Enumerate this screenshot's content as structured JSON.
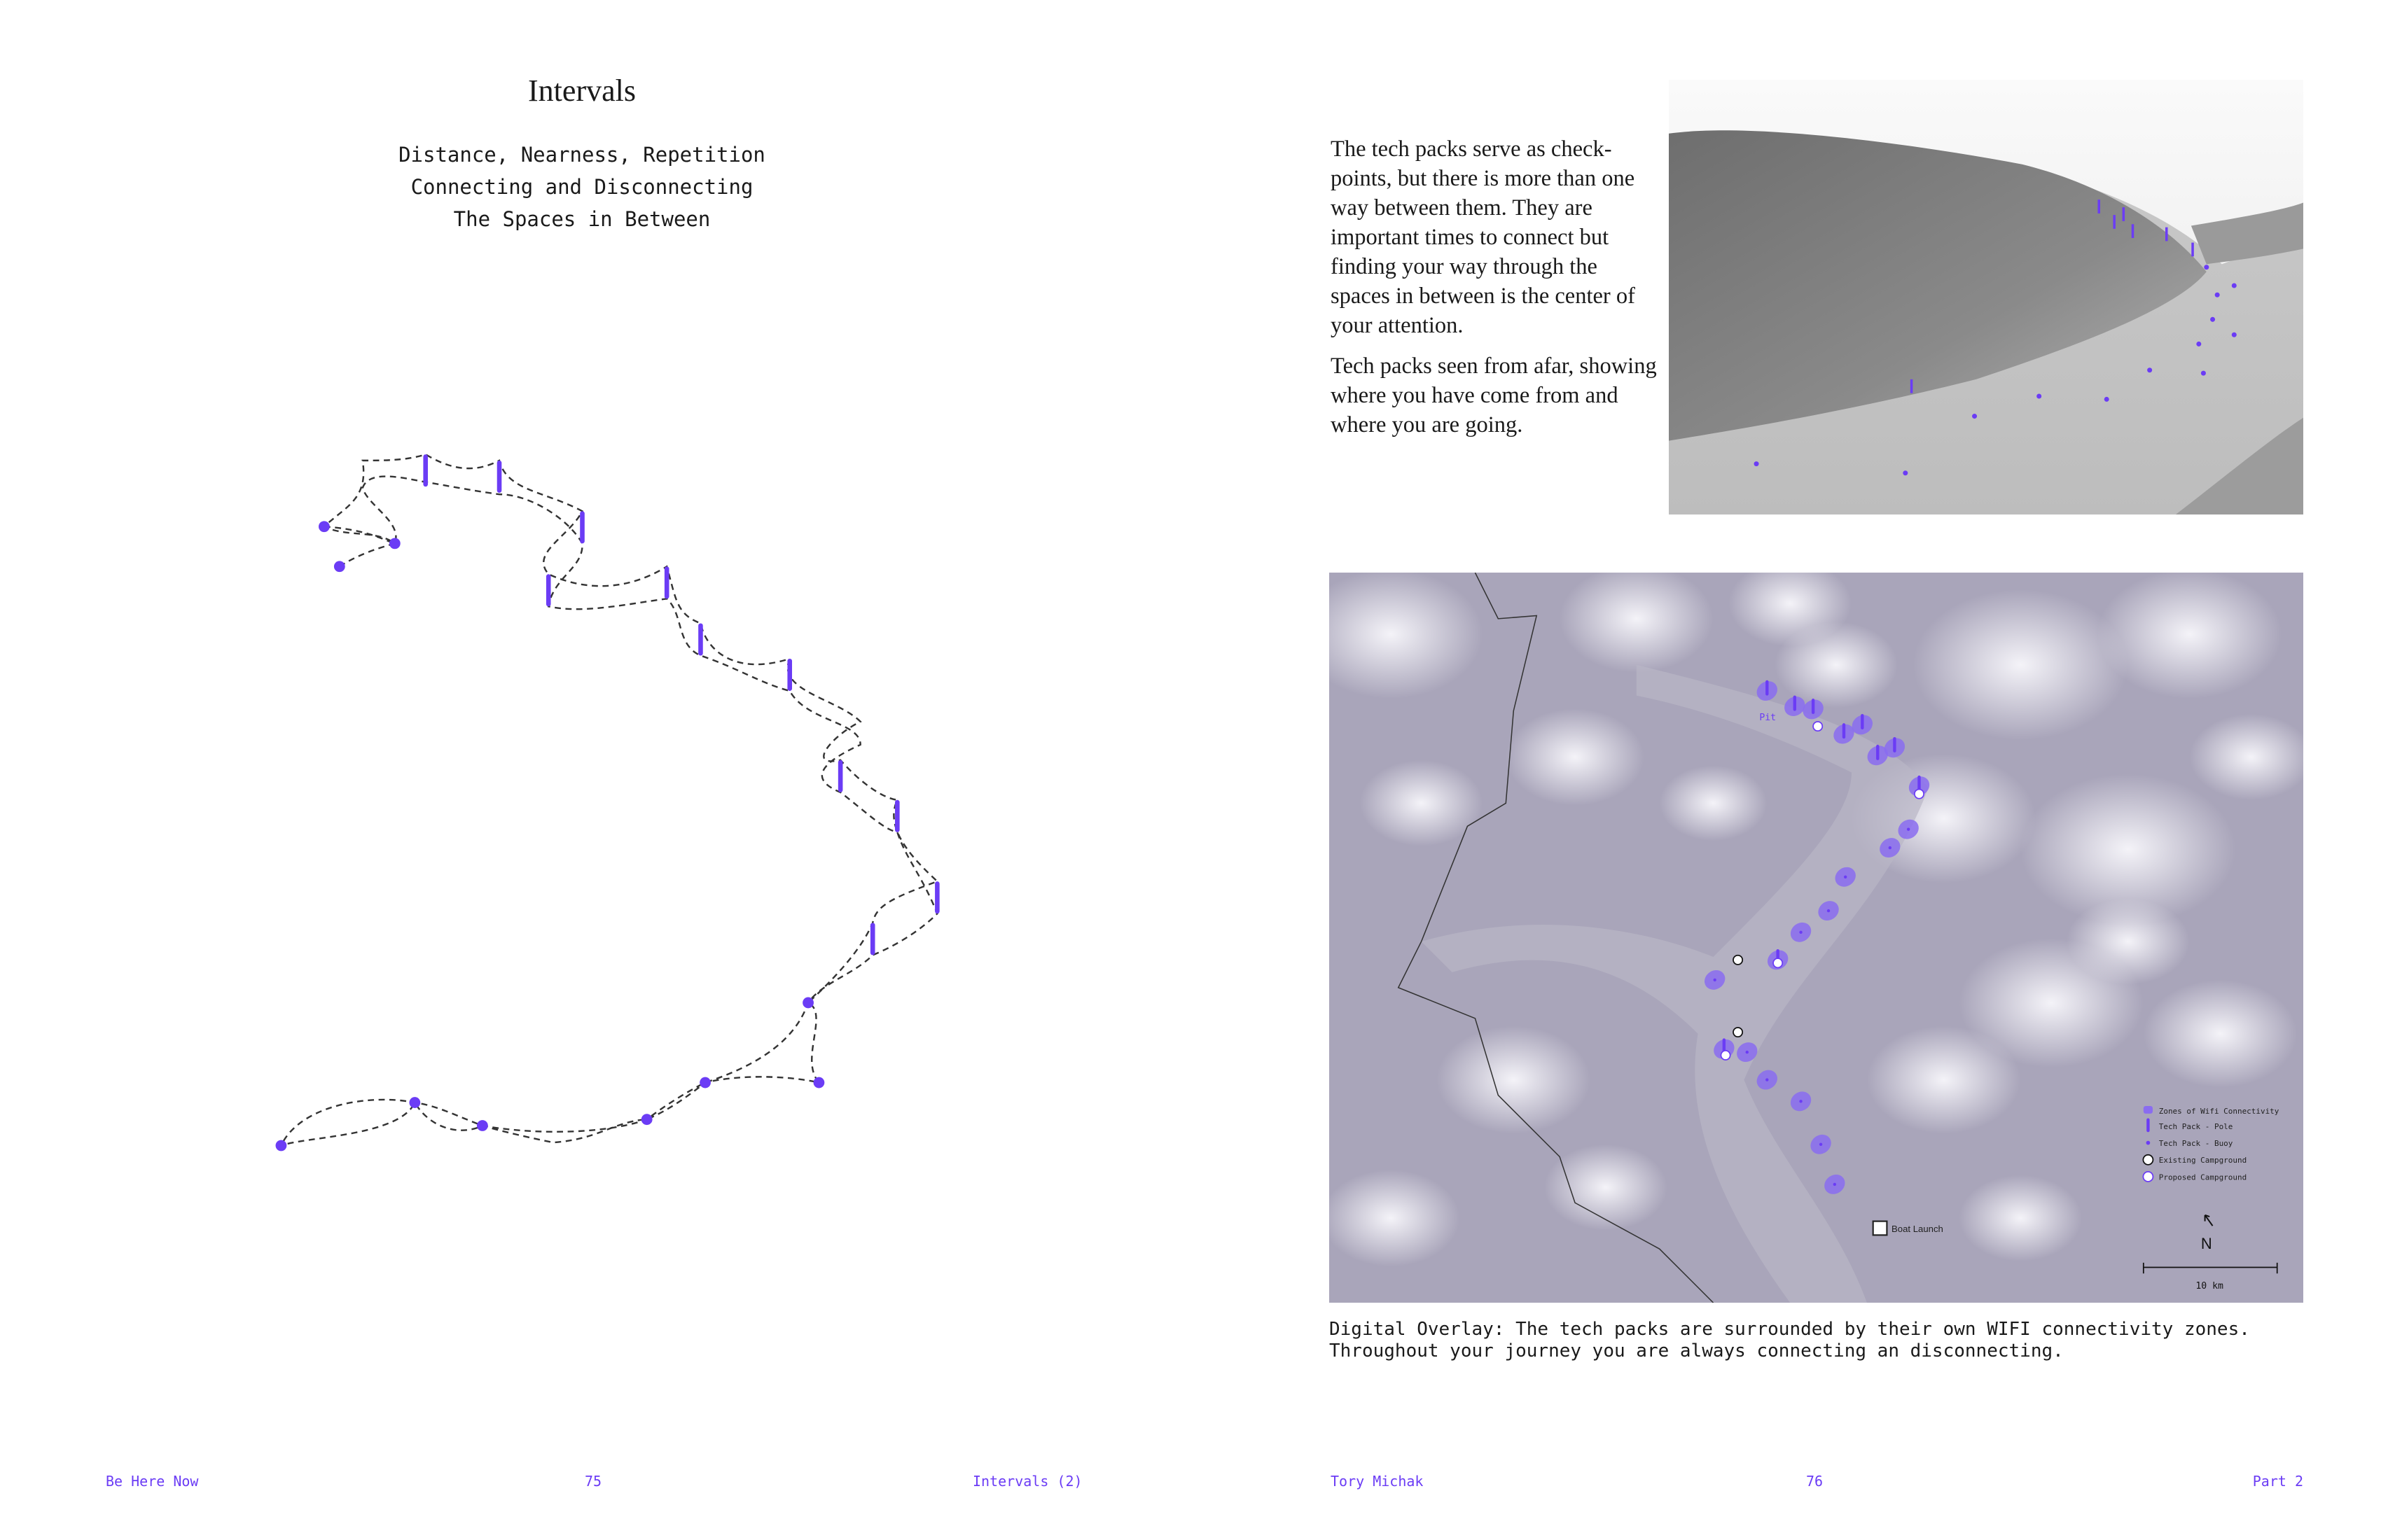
{
  "colors": {
    "accent": "#6b3cf5",
    "zone": "#8a6cf0",
    "text": "#1a1a1a",
    "map_base": "#a9a5ba"
  },
  "left_page": {
    "title": "Intervals",
    "subtitle_lines": [
      "Distance, Nearness, Repetition",
      "Connecting and Disconnecting",
      "The Spaces in Between"
    ],
    "footer": {
      "left": "Be Here Now",
      "center": "75",
      "right": "Intervals (2)"
    }
  },
  "right_page": {
    "paragraphs": [
      "The tech packs serve as check-points, but there is more than one way between them. They are important times to connect but finding your way through the spaces in between is the center of your attention.",
      "Tech packs seen from afar, showing where you have come from and where you are going."
    ],
    "map": {
      "pit_label": "Pit",
      "boat_launch_label": "Boat Launch",
      "legend": [
        {
          "icon": "zone-swatch-icon",
          "label": "Zones of Wifi Connectivity"
        },
        {
          "icon": "pole-icon",
          "label": "Tech Pack - Pole"
        },
        {
          "icon": "buoy-icon",
          "label": "Tech Pack - Buoy"
        },
        {
          "icon": "existing-campground-icon",
          "label": "Existing Campground"
        },
        {
          "icon": "proposed-campground-icon",
          "label": "Proposed Campground"
        }
      ],
      "north_label": "N",
      "scale_label": "10 km"
    },
    "caption": "Digital Overlay: The tech packs are surrounded by their own WIFI connectivity zones.\nThroughout your journey you are always connecting an disconnecting.",
    "footer": {
      "left": "Tory Michak",
      "center": "76",
      "right": "Part 2"
    }
  }
}
